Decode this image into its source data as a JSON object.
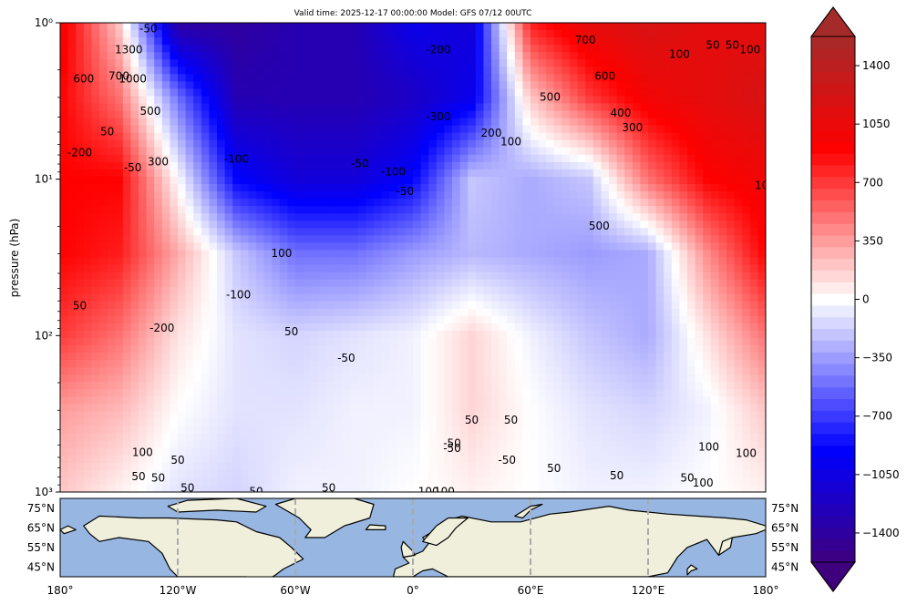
{
  "chart_data": [
    {
      "type": "heatmap",
      "title": "Valid time: 2025-12-17 00:00:00 Model: GFS 07/12 00UTC",
      "xlabel": "",
      "ylabel": "pressure (hPa)",
      "y_scale": "log",
      "y_inverted": true,
      "ylim": [
        1000,
        1
      ],
      "y_ticks": [
        {
          "value": 1,
          "label": "10⁰"
        },
        {
          "value": 10,
          "label": "10¹"
        },
        {
          "value": 100,
          "label": "10²"
        },
        {
          "value": 1000,
          "label": "10³"
        }
      ],
      "xlim": [
        -180,
        180
      ],
      "colormap": "seismic-like (blue-white-red)",
      "colors": {
        "negative_end": "#3f007d",
        "strong_blue": "#0000ff",
        "zero": "#ffffff",
        "strong_red": "#ff0000",
        "positive_end": "#a52a2a"
      },
      "fields": {
        "description": "Approximate filled-contour field digitised from the figure: value at each (longitude, pressure) node",
        "longitudes": [
          -180,
          -150,
          -120,
          -90,
          -60,
          -30,
          0,
          30,
          60,
          90,
          120,
          150,
          180
        ],
        "pressures_hpa": [
          1,
          3,
          10,
          30,
          100,
          300,
          1000
        ],
        "values": [
          [
            1000,
            200,
            -1400,
            -1400,
            -1300,
            -1300,
            -1000,
            -1100,
            800,
            1100,
            1200,
            1100,
            1100
          ],
          [
            900,
            500,
            -500,
            -1300,
            -1300,
            -1300,
            -1200,
            -1000,
            200,
            700,
            1000,
            1100,
            1200
          ],
          [
            900,
            900,
            0,
            -900,
            -1100,
            -1100,
            -900,
            -200,
            -300,
            -200,
            500,
            900,
            1000
          ],
          [
            900,
            800,
            300,
            -200,
            -500,
            -500,
            -350,
            -250,
            -300,
            -350,
            -300,
            400,
            900
          ],
          [
            700,
            500,
            100,
            -100,
            -150,
            -100,
            -50,
            150,
            -50,
            -200,
            -300,
            100,
            500
          ],
          [
            350,
            250,
            0,
            -100,
            -100,
            -50,
            -50,
            150,
            0,
            -100,
            -150,
            -50,
            200
          ],
          [
            200,
            50,
            -100,
            -150,
            -50,
            -50,
            0,
            50,
            0,
            -50,
            -50,
            0,
            50
          ]
        ]
      },
      "contour_labels": [
        "1300",
        "600",
        "700",
        "1000",
        "500",
        "50",
        "-200",
        "-50",
        "300",
        "-100",
        "100",
        "-200",
        "50",
        "-50",
        "-50",
        "-100",
        "-50",
        "100",
        "50",
        "50",
        "50",
        "50",
        "-50",
        "-100",
        "-200",
        "-300",
        "200",
        "100",
        "500",
        "700",
        "600",
        "400",
        "300",
        "100",
        "50",
        "50",
        "100",
        "10",
        "500",
        "50",
        "-50",
        "-50",
        "-50",
        "50",
        "50",
        "100",
        "100",
        "50",
        "100",
        "100",
        "100",
        "50",
        "50",
        "-50",
        "50"
      ]
    },
    {
      "type": "heatmap",
      "title": "Colorbar",
      "ticks": [
        "1400",
        "1050",
        "700",
        "350",
        "0",
        "−350",
        "−700",
        "−1050",
        "−1400"
      ],
      "tick_values": [
        1400,
        1050,
        700,
        350,
        0,
        -350,
        -700,
        -1050,
        -1400
      ],
      "range": [
        -1575,
        1575
      ],
      "extend": "both"
    },
    {
      "type": "map",
      "title": "",
      "lon_ticks": [
        "180°",
        "120°W",
        "60°W",
        "0°",
        "60°E",
        "120°E",
        "180°"
      ],
      "lon_values": [
        -180,
        -120,
        -60,
        0,
        60,
        120,
        180
      ],
      "lat_ticks": [
        "75°N",
        "65°N",
        "55°N",
        "45°N"
      ],
      "lat_values": [
        75,
        65,
        55,
        45
      ],
      "lat_range": [
        40,
        80
      ],
      "gridlines": "dashed gray at 60° intervals",
      "colors": {
        "ocean": "#97b6e1",
        "land": "#efefdb",
        "coast": "#000000",
        "grid": "#aaaaaa"
      }
    }
  ]
}
